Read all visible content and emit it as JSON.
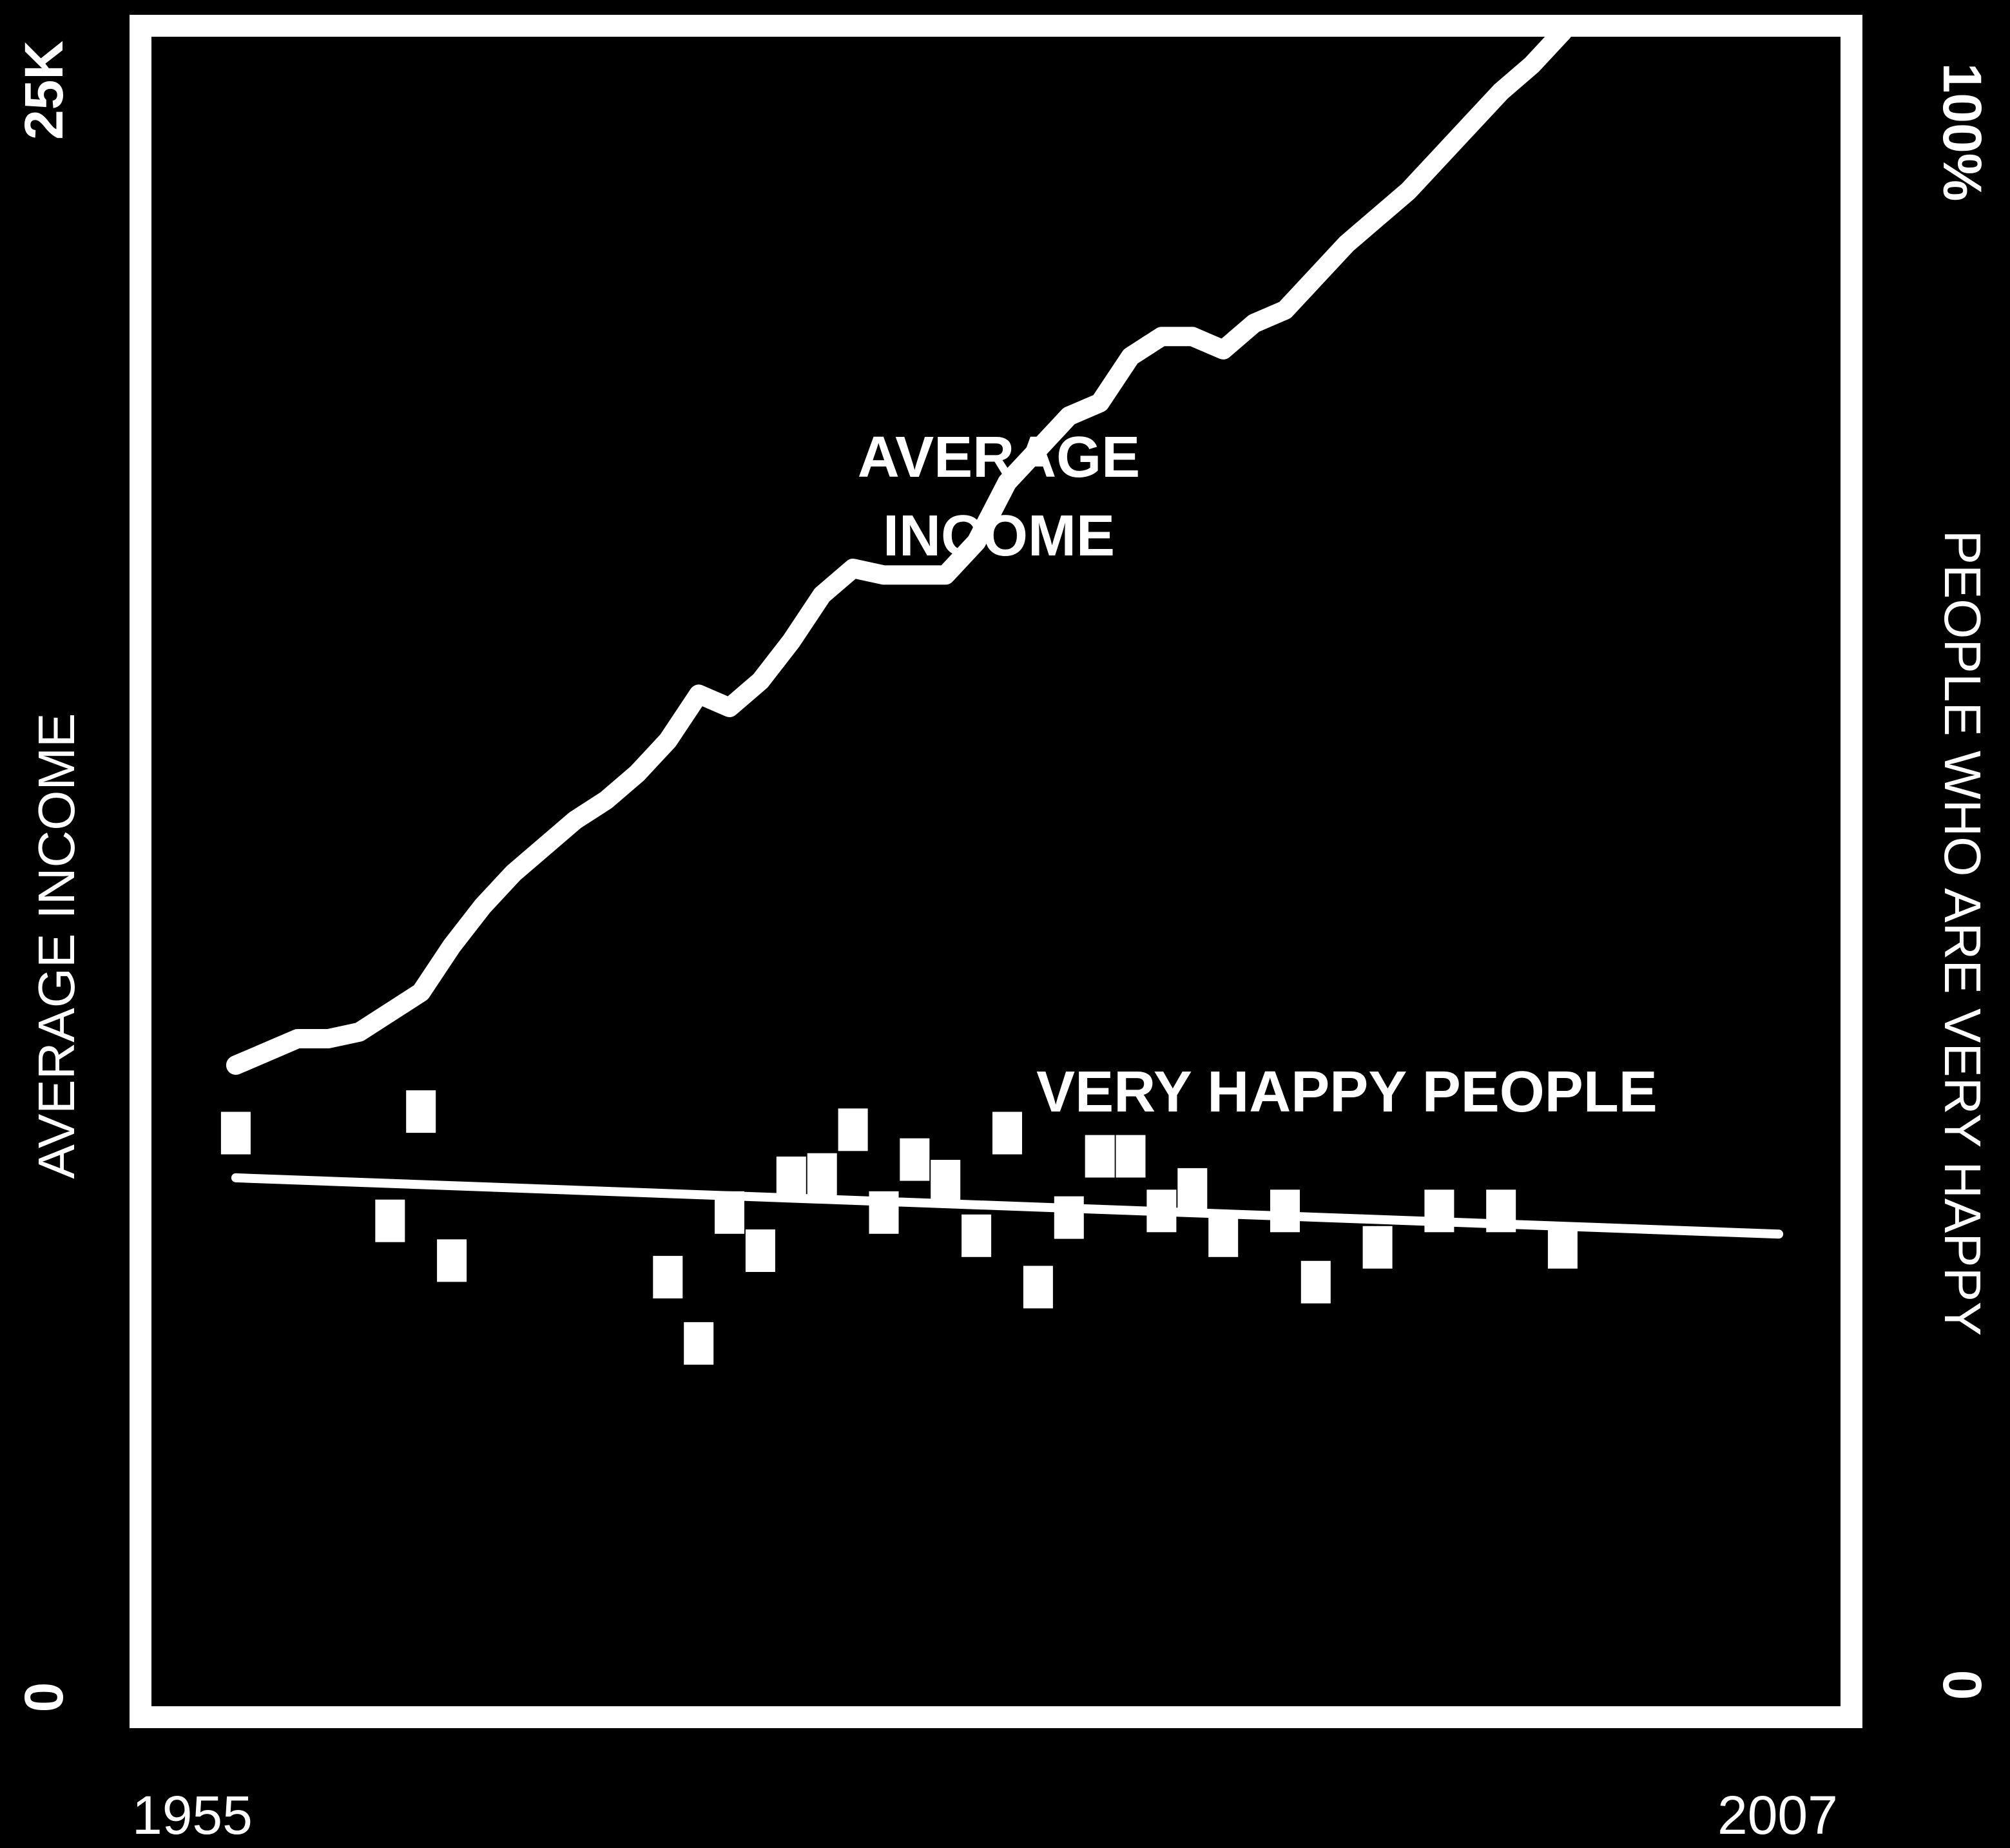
{
  "chart_data": {
    "type": "line",
    "ylabel_left": "AVERAGE INCOME",
    "ylabel_right": "PEOPLE WHO ARE VERY HAPPY",
    "left_axis": {
      "min_label": "0",
      "max_label": "25K",
      "range": [
        0,
        25000
      ]
    },
    "right_axis": {
      "min_label": "0",
      "max_label": "100%",
      "range": [
        0,
        100
      ]
    },
    "x_axis": {
      "start_label": "1955",
      "end_label": "2007",
      "range": [
        1955,
        2007
      ]
    },
    "grid": false,
    "legend": "none",
    "annotations": {
      "income_label_line1": "AVERAGE",
      "income_label_line2": "INCOME",
      "happy_label": "VERY HAPPY PEOPLE"
    },
    "series": [
      {
        "axis": "left",
        "style": "line",
        "color": "#ffffff",
        "points": [
          [
            1956,
            9600
          ],
          [
            1957,
            9800
          ],
          [
            1958,
            10000
          ],
          [
            1959,
            10000
          ],
          [
            1960,
            10100
          ],
          [
            1961,
            10400
          ],
          [
            1962,
            10700
          ],
          [
            1963,
            11400
          ],
          [
            1964,
            12000
          ],
          [
            1965,
            12500
          ],
          [
            1966,
            12900
          ],
          [
            1967,
            13300
          ],
          [
            1968,
            13600
          ],
          [
            1969,
            14000
          ],
          [
            1970,
            14500
          ],
          [
            1971,
            15200
          ],
          [
            1972,
            15000
          ],
          [
            1973,
            15400
          ],
          [
            1974,
            16000
          ],
          [
            1975,
            16700
          ],
          [
            1976,
            17100
          ],
          [
            1977,
            17000
          ],
          [
            1978,
            17000
          ],
          [
            1979,
            17000
          ],
          [
            1980,
            17500
          ],
          [
            1981,
            18400
          ],
          [
            1982,
            18900
          ],
          [
            1983,
            19400
          ],
          [
            1984,
            19600
          ],
          [
            1985,
            20300
          ],
          [
            1986,
            20600
          ],
          [
            1987,
            20600
          ],
          [
            1988,
            20400
          ],
          [
            1989,
            20800
          ],
          [
            1990,
            21000
          ],
          [
            1991,
            21500
          ],
          [
            1992,
            22000
          ],
          [
            1993,
            22400
          ],
          [
            1994,
            22800
          ],
          [
            1995,
            23300
          ],
          [
            1996,
            23800
          ],
          [
            1997,
            24300
          ],
          [
            1998,
            24700
          ],
          [
            1999,
            25200
          ]
        ]
      },
      {
        "axis": "right",
        "style": "line",
        "name_note": "trend",
        "color": "#ffffff",
        "points": [
          [
            1956,
            31.6
          ],
          [
            2006,
            28.2
          ]
        ]
      },
      {
        "axis": "right",
        "style": "markers",
        "color": "#ffffff",
        "points": [
          [
            1956,
            34.3
          ],
          [
            1961,
            29.0
          ],
          [
            1962,
            35.6
          ],
          [
            1963,
            26.6
          ],
          [
            1970,
            25.6
          ],
          [
            1971,
            21.6
          ],
          [
            1972,
            29.5
          ],
          [
            1973,
            27.2
          ],
          [
            1974,
            31.6
          ],
          [
            1975,
            31.8
          ],
          [
            1976,
            34.5
          ],
          [
            1977,
            29.5
          ],
          [
            1978,
            32.7
          ],
          [
            1979,
            31.4
          ],
          [
            1980,
            28.1
          ],
          [
            1981,
            34.3
          ],
          [
            1982,
            25.0
          ],
          [
            1983,
            29.2
          ],
          [
            1984,
            32.9
          ],
          [
            1985,
            32.9
          ],
          [
            1986,
            29.6
          ],
          [
            1987,
            30.9
          ],
          [
            1988,
            28.1
          ],
          [
            1990,
            29.6
          ],
          [
            1991,
            25.3
          ],
          [
            1993,
            27.4
          ],
          [
            1995,
            29.6
          ],
          [
            1997,
            29.6
          ],
          [
            1999,
            27.4
          ]
        ]
      }
    ]
  }
}
